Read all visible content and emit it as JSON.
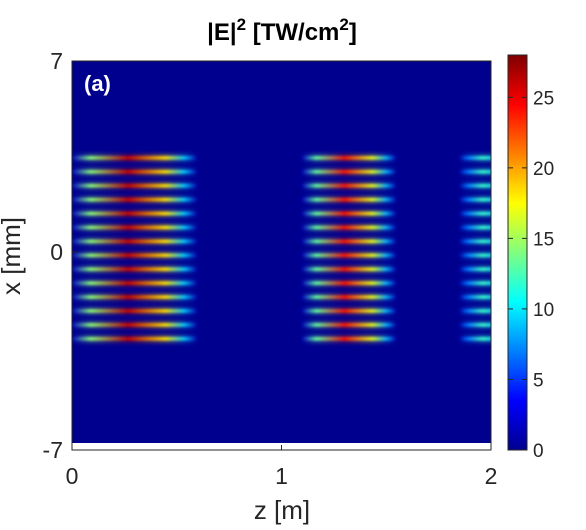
{
  "chart_data": {
    "type": "heatmap",
    "title_main": "|E|",
    "title_sup1": "2",
    "title_mid": " [TW/cm",
    "title_sup2": "2",
    "title_end": "]",
    "panel_label": "(a)",
    "xlabel": "z [m]",
    "ylabel": "x [mm]",
    "xlim": [
      0,
      2
    ],
    "ylim": [
      -7,
      7
    ],
    "xticks": [
      0,
      1,
      2
    ],
    "xtick_labels": [
      "0",
      "1",
      "2"
    ],
    "yticks": [
      7,
      0,
      -7
    ],
    "ytick_labels": [
      "7",
      "0",
      "-7"
    ],
    "colormap": "jet",
    "clim": [
      0,
      28
    ],
    "colorbar_ticks": [
      0,
      5,
      10,
      15,
      20,
      25
    ],
    "colorbar_tick_labels": [
      "0",
      "5",
      "10",
      "15",
      "20",
      "25"
    ],
    "beam_lines_x_mm": [
      3.45,
      2.94,
      2.43,
      1.92,
      1.41,
      0.9,
      0.39,
      -0.12,
      -0.63,
      -1.14,
      -1.65,
      -2.16,
      -2.67,
      -3.18
    ],
    "focus_regions": [
      {
        "z_start": 0.0,
        "z_end": 0.5,
        "peak": 26
      },
      {
        "z_start": 1.1,
        "z_end": 1.45,
        "peak": 24
      },
      {
        "z_start": 1.85,
        "z_end": 2.0,
        "peak": 12
      }
    ]
  }
}
